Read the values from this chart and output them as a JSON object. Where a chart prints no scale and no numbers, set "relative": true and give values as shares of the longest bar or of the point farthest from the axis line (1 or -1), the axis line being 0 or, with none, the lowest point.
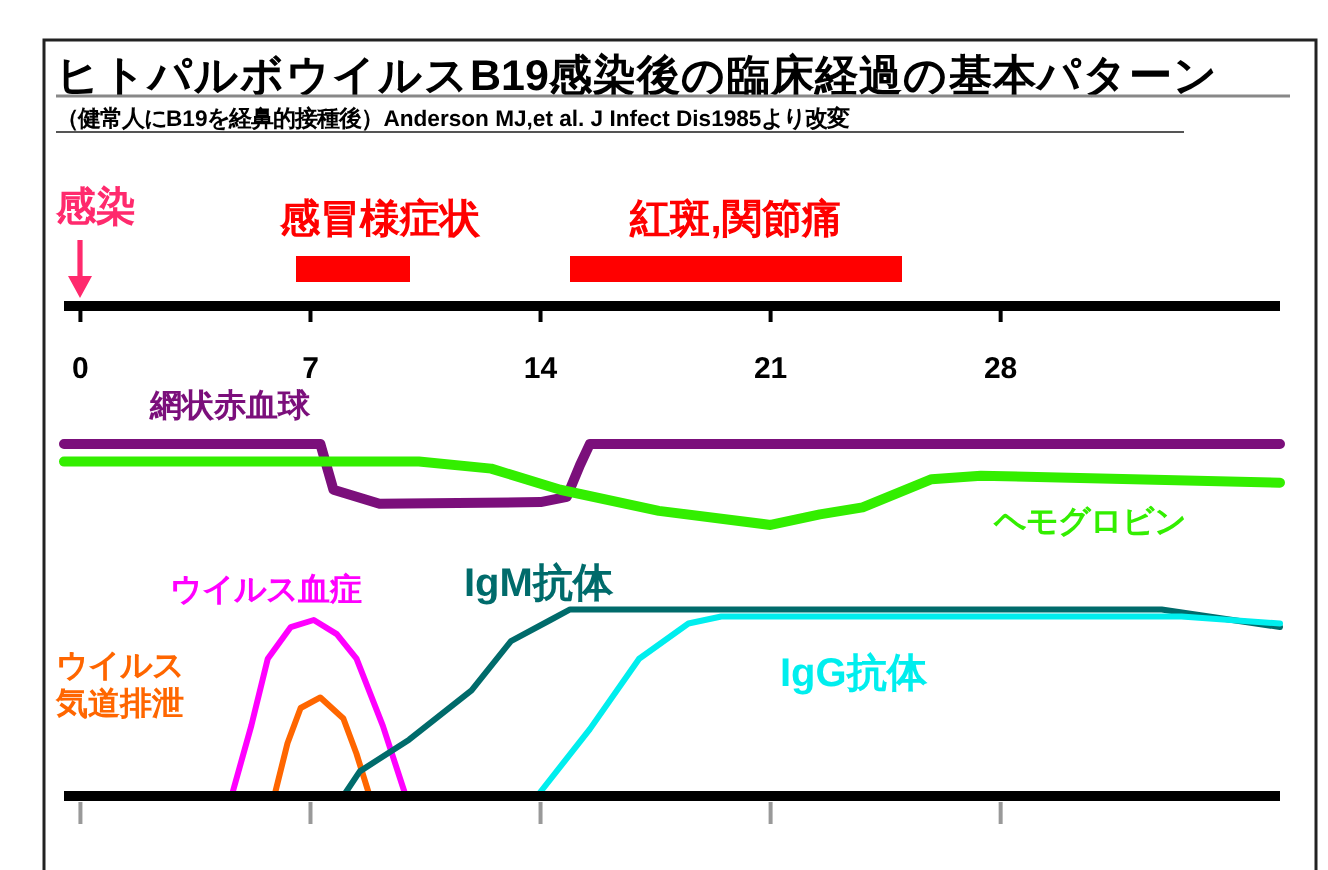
{
  "chart_data": {
    "type": "line",
    "title": "ヒトパルボウイルスB19感染後の臨床経過の基本パターン",
    "subtitle": "（健常人にB19を経鼻的接種後）Anderson MJ,et al. J Infect Dis1985より改変",
    "relative": true,
    "legend": false,
    "grid": false,
    "marker": "none",
    "line_style": "solid",
    "xlim": [
      -0.5,
      36.5
    ],
    "xticks": [
      0,
      7,
      14,
      21,
      28
    ],
    "annotations": [
      "感染",
      "感冒様症状",
      "紅斑,関節痛"
    ],
    "series": [
      {
        "name": "網状赤血球",
        "color": "#7b0f7b",
        "x": [
          -0.5,
          7.3,
          7.7,
          9.1,
          14,
          14.8,
          15.2,
          15.5,
          36.5
        ],
        "values": [
          1,
          1,
          0.87,
          0.83,
          0.835,
          0.85,
          0.94,
          1,
          1
        ]
      },
      {
        "name": "ヘモグロビン",
        "color": "#33ee00",
        "x": [
          -0.5,
          10.3,
          12.5,
          14.6,
          17.6,
          21,
          22.5,
          23.8,
          25.9,
          27.4,
          36.5
        ],
        "values": [
          0.95,
          0.95,
          0.93,
          0.87,
          0.81,
          0.77,
          0.8,
          0.82,
          0.9,
          0.91,
          0.89
        ]
      },
      {
        "name": "ウイルス血症",
        "color": "#ff00ff",
        "x": [
          4.6,
          5.2,
          5.7,
          6.4,
          7.1,
          7.8,
          8.4,
          9.2,
          9.9
        ],
        "values": [
          0,
          0.2,
          0.39,
          0.48,
          0.5,
          0.46,
          0.39,
          0.2,
          0
        ]
      },
      {
        "name": "ウイルス気道排泄",
        "color": "#ff6600",
        "x": [
          5.9,
          6.3,
          6.7,
          7.3,
          8,
          8.4,
          8.8
        ],
        "values": [
          0,
          0.15,
          0.25,
          0.28,
          0.22,
          0.12,
          0
        ]
      },
      {
        "name": "IgM抗体",
        "color": "#006b6b",
        "x": [
          8,
          8.5,
          10,
          11.9,
          13.1,
          14.3,
          14.9,
          21.9,
          32.9,
          36.5
        ],
        "values": [
          0,
          0.07,
          0.16,
          0.3,
          0.44,
          0.5,
          0.53,
          0.53,
          0.53,
          0.48
        ]
      },
      {
        "name": "IgG抗体",
        "color": "#00eeee",
        "x": [
          13.9,
          15.5,
          17,
          18.5,
          19.5,
          33.5,
          36.5
        ],
        "values": [
          0,
          0.19,
          0.39,
          0.49,
          0.51,
          0.51,
          0.49
        ]
      }
    ]
  }
}
